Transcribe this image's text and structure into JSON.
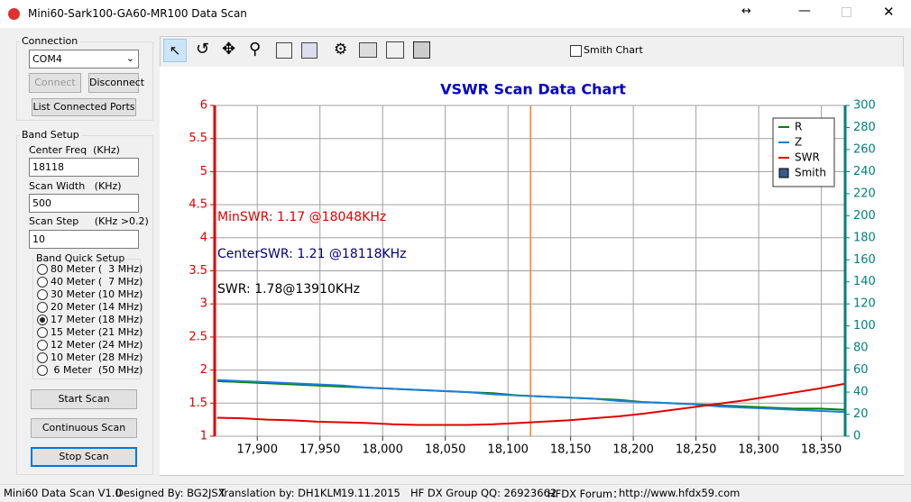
{
  "window": {
    "title": "Mini60-Sark100-GA60-MR100 Data Scan"
  },
  "connection": {
    "group": "Connection",
    "port": "COM4",
    "connect": "Connect",
    "disconnect": "Disconnect",
    "list_ports": "List Connected Ports"
  },
  "band_setup": {
    "group": "Band Setup",
    "center_label": "Center Freq  (KHz)",
    "center_value": "18118",
    "width_label": "Scan Width   (KHz)",
    "width_value": "500",
    "step_label": "Scan Step     (KHz >0.2)",
    "step_value": "10",
    "quick_group": "Band Quick Setup",
    "bands": [
      "80 Meter (  3 MHz)",
      "40 Meter (  7 MHz)",
      "30 Meter (10 MHz)",
      "20 Meter (14 MHz)",
      "17 Meter (18 MHz)",
      "15 Meter (21 MHz)",
      "12 Meter (24 MHz)",
      "10 Meter (28 MHz)",
      " 6 Meter  (50 MHz)"
    ],
    "selected_band": 4,
    "start": "Start Scan",
    "continuous": "Continuous Scan",
    "stop": "Stop Scan"
  },
  "toolbar": {
    "smith_checkbox": "Smith Chart"
  },
  "chart_data": {
    "type": "line",
    "title": "VSWR Scan Data Chart",
    "x": [
      17868,
      17888,
      17908,
      17928,
      17948,
      17968,
      17988,
      18008,
      18028,
      18048,
      18068,
      18088,
      18108,
      18128,
      18148,
      18168,
      18188,
      18208,
      18228,
      18248,
      18268,
      18288,
      18308,
      18328,
      18348,
      18368
    ],
    "series": [
      {
        "name": "R",
        "color": "#008000",
        "axis": "y2",
        "values": [
          50,
          49,
          48,
          47,
          46,
          45,
          44,
          43,
          42,
          41,
          40,
          39,
          37,
          36,
          35,
          34,
          33,
          31,
          30,
          29,
          28,
          27,
          26,
          25,
          25,
          24
        ]
      },
      {
        "name": "Z",
        "color": "#1e7fd8",
        "axis": "y2",
        "values": [
          51,
          50,
          49,
          48,
          47,
          46,
          44,
          43,
          42,
          41,
          40,
          38,
          37,
          36,
          35,
          34,
          32,
          31,
          30,
          29,
          27,
          26,
          25,
          24,
          23,
          22
        ]
      },
      {
        "name": "SWR",
        "color": "#e00000",
        "values": [
          1.28,
          1.27,
          1.25,
          1.24,
          1.22,
          1.21,
          1.2,
          1.18,
          1.17,
          1.17,
          1.17,
          1.18,
          1.2,
          1.22,
          1.24,
          1.27,
          1.3,
          1.34,
          1.39,
          1.44,
          1.49,
          1.54,
          1.6,
          1.66,
          1.72,
          1.79
        ]
      }
    ],
    "smith_legend": "Smith",
    "legend_position": "upper right",
    "xlim": [
      17866,
      18369
    ],
    "xticks": [
      {
        "value": 17900,
        "label": "17,900"
      },
      {
        "value": 17950,
        "label": "17,950"
      },
      {
        "value": 18000,
        "label": "18,000"
      },
      {
        "value": 18050,
        "label": "18,050"
      },
      {
        "value": 18100,
        "label": "18,100"
      },
      {
        "value": 18150,
        "label": "18,150"
      },
      {
        "value": 18200,
        "label": "18,200"
      },
      {
        "value": 18250,
        "label": "18,250"
      },
      {
        "value": 18300,
        "label": "18,300"
      },
      {
        "value": 18350,
        "label": "18,350"
      }
    ],
    "ylim": [
      1,
      6
    ],
    "yticks": [
      1,
      1.5,
      2,
      2.5,
      3,
      3.5,
      4,
      4.5,
      5,
      5.5,
      6
    ],
    "y2lim": [
      0,
      300
    ],
    "y2ticks": [
      0,
      20,
      40,
      60,
      80,
      100,
      120,
      140,
      160,
      180,
      200,
      220,
      240,
      260,
      280,
      300
    ],
    "grid": true,
    "cursor_x": 18118,
    "annotations": [
      "MinSWR: 1.17 @18048KHz",
      "CenterSWR: 1.21 @18118KHz",
      "SWR: 1.78@13910KHz"
    ]
  },
  "status_bar": [
    "Mini60 Data Scan V1.0",
    "Designed By: BG2JSX",
    "Translation by: DH1KLM",
    "19.11.2015",
    "HF DX Group QQ: 26923662",
    "HFDX Forum：",
    "http://www.hfdx59.com"
  ]
}
